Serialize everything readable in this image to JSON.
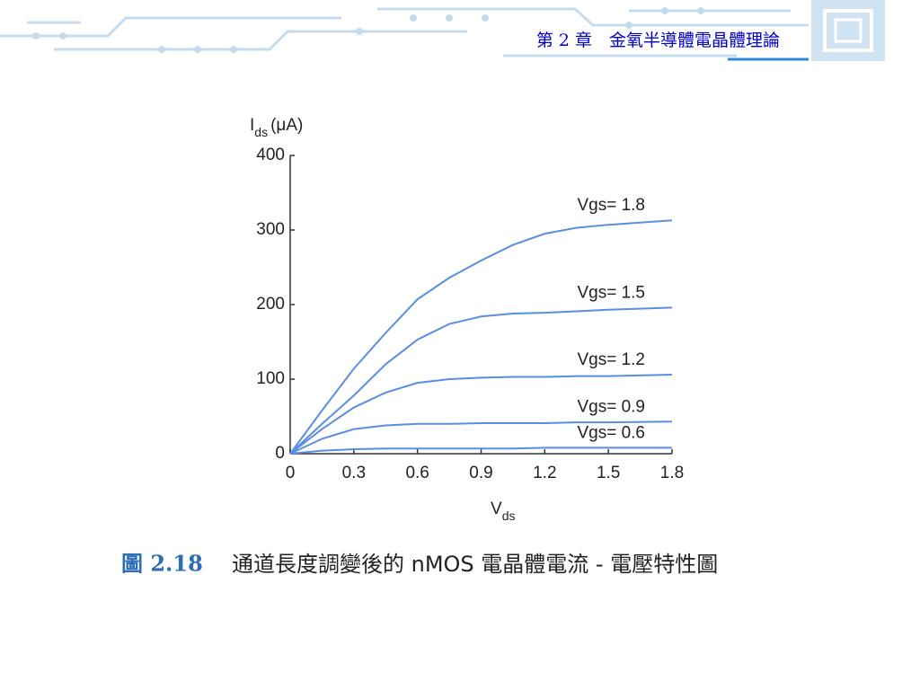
{
  "header": {
    "chapter": "第 2 章　金氧半導體電晶體理論"
  },
  "chart_data": {
    "type": "line",
    "y_label": {
      "symbol": "I",
      "subscript": "ds",
      "unit": "(μA)"
    },
    "x_label": {
      "symbol": "V",
      "subscript": "ds"
    },
    "x": [
      0,
      0.15,
      0.3,
      0.45,
      0.6,
      0.75,
      0.9,
      1.05,
      1.2,
      1.35,
      1.5,
      1.8
    ],
    "xlim": [
      0,
      1.8
    ],
    "xticks": [
      0,
      0.3,
      0.6,
      0.9,
      1.2,
      1.5,
      1.8
    ],
    "ylim": [
      0,
      400
    ],
    "yticks": [
      0,
      100,
      200,
      300,
      400
    ],
    "series": [
      {
        "name": "Vgs= 1.8",
        "color": "#5b8ee0",
        "values": [
          0,
          58,
          114,
          162,
          207,
          236,
          259,
          280,
          295,
          303,
          307,
          313
        ]
      },
      {
        "name": "Vgs= 1.5",
        "color": "#5b8ee0",
        "values": [
          0,
          40,
          78,
          120,
          153,
          174,
          184,
          188,
          189,
          191,
          193,
          196
        ]
      },
      {
        "name": "Vgs= 1.2",
        "color": "#5b8ee0",
        "values": [
          0,
          33,
          62,
          82,
          95,
          100,
          102,
          103,
          103,
          104,
          104,
          106
        ]
      },
      {
        "name": "Vgs= 0.9",
        "color": "#5b8ee0",
        "values": [
          0,
          20,
          33,
          38,
          40,
          40,
          41,
          41,
          41,
          42,
          42,
          43
        ]
      },
      {
        "name": "Vgs= 0.6",
        "color": "#5b8ee0",
        "values": [
          0,
          4,
          6,
          7,
          7,
          7,
          7,
          7,
          8,
          8,
          8,
          8
        ]
      }
    ]
  },
  "caption": {
    "number": "圖 2.18",
    "text": "通道長度調變後的 nMOS 電晶體電流 - 電壓特性圖"
  }
}
